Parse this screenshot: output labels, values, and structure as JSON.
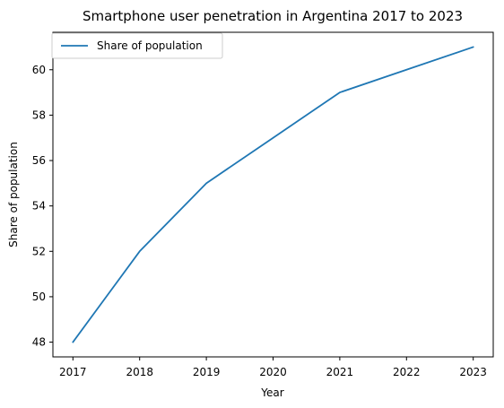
{
  "chart_data": {
    "type": "line",
    "title": "Smartphone user penetration in Argentina 2017 to 2023",
    "xlabel": "Year",
    "ylabel": "Share of population",
    "x": [
      2017,
      2018,
      2019,
      2020,
      2021,
      2022,
      2023
    ],
    "x_tick_labels": [
      "2017",
      "2018",
      "2019",
      "2020",
      "2021",
      "2022",
      "2023"
    ],
    "y_ticks": [
      48,
      50,
      52,
      54,
      56,
      58,
      60
    ],
    "y_tick_labels": [
      "48",
      "50",
      "52",
      "54",
      "56",
      "58",
      "60"
    ],
    "xlim": [
      2016.7,
      2023.3
    ],
    "ylim": [
      47.35,
      61.65
    ],
    "grid": false,
    "legend_position": "top-left",
    "series": [
      {
        "name": "Share of population",
        "color": "#1f77b4",
        "values": [
          48,
          52,
          55,
          57,
          59,
          60,
          61
        ]
      }
    ]
  }
}
